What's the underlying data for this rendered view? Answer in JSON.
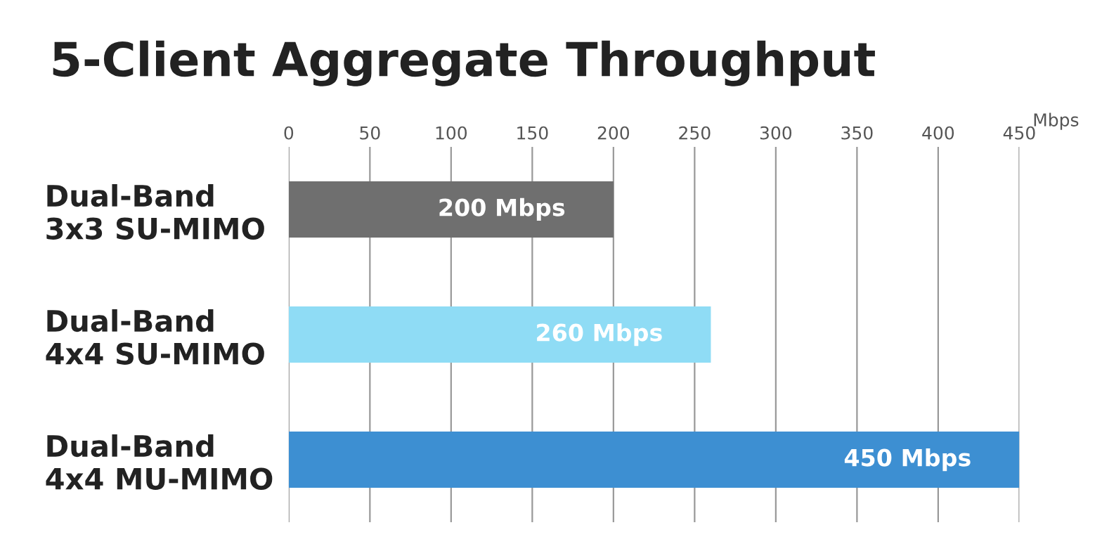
{
  "chart_data": {
    "type": "bar",
    "orientation": "horizontal",
    "title": "5-Client Aggregate Throughput",
    "xlabel": "Mbps",
    "categories": [
      "Dual-Band\n3x3 SU-MIMO",
      "Dual-Band\n4x4 SU-MIMO",
      "Dual-Band\n4x4 MU-MIMO"
    ],
    "values": [
      200,
      260,
      450
    ],
    "colors": [
      "#6f6f6f",
      "#8fdcf5",
      "#3d8fd2"
    ],
    "value_labels": [
      "200 Mbps",
      "260 Mbps",
      "450 Mbps"
    ],
    "xlim": [
      0,
      450
    ],
    "xticks": [
      0,
      50,
      100,
      150,
      200,
      250,
      300,
      350,
      400,
      450
    ],
    "grid": "x"
  }
}
